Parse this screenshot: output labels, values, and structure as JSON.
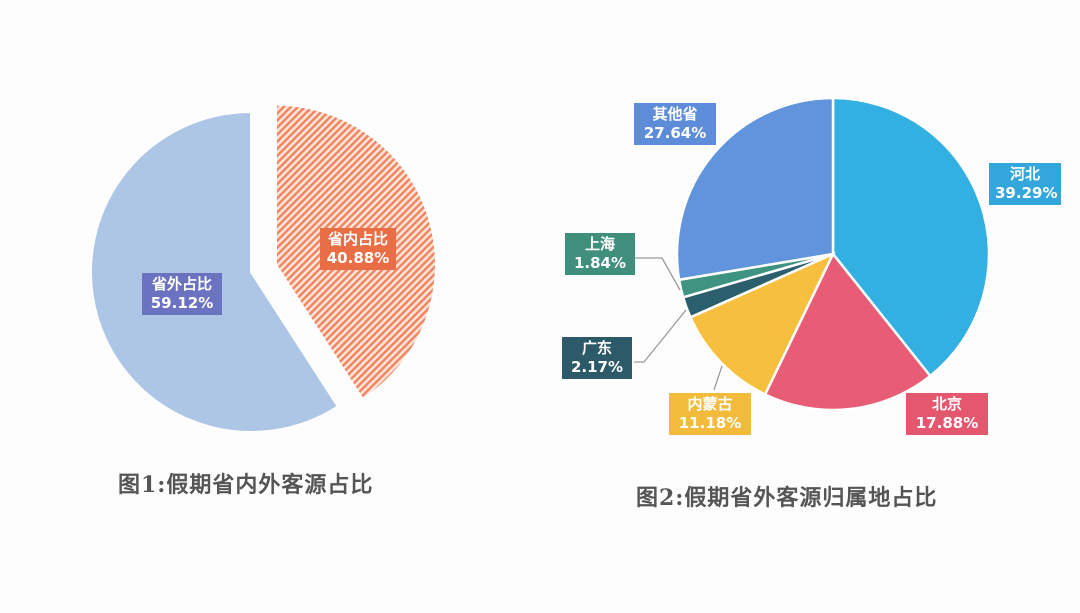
{
  "chart_data": [
    {
      "type": "pie",
      "title": "图1:假期省内外客源占比",
      "categories": [
        "省内占比",
        "省外占比"
      ],
      "values": [
        40.88,
        59.12
      ],
      "value_labels": [
        "40.88%",
        "59.12%"
      ],
      "colors": [
        "#ee7d58",
        "#adc6e6"
      ],
      "label_colors": [
        "#ea6e45",
        "#6b73c0"
      ],
      "start_angle_deg": 0,
      "direction": "clockwise",
      "exploded": [
        "省内占比"
      ],
      "pattern": {
        "省内占比": "diagonal-hatch"
      },
      "legend": "none"
    },
    {
      "type": "pie",
      "title": "图2:假期省外客源归属地占比",
      "categories": [
        "河北",
        "北京",
        "内蒙古",
        "广东",
        "上海",
        "其他省"
      ],
      "values": [
        39.29,
        17.88,
        11.18,
        2.17,
        1.84,
        27.64
      ],
      "value_labels": [
        "39.29%",
        "17.88%",
        "11.18%",
        "2.17%",
        "1.84%",
        "27.64%"
      ],
      "colors": [
        "#33b0e2",
        "#e85d75",
        "#f6bf3d",
        "#2c5f6d",
        "#3f9481",
        "#6194dc"
      ],
      "label_colors": [
        "#33a6dc",
        "#e5566f",
        "#f3bb3b",
        "#2c5a68",
        "#3f8f7c",
        "#5d8cd8"
      ],
      "start_angle_deg": 0,
      "direction": "clockwise",
      "legend": "none"
    }
  ],
  "figure1": {
    "caption": "图1:假期省内外客源占比",
    "labels": [
      {
        "name": "省内占比",
        "value": "40.88%"
      },
      {
        "name": "省外占比",
        "value": "59.12%"
      }
    ]
  },
  "figure2": {
    "caption": "图2:假期省外客源归属地占比",
    "labels": [
      {
        "name": "河北",
        "value": "39.29%"
      },
      {
        "name": "北京",
        "value": "17.88%"
      },
      {
        "name": "内蒙古",
        "value": "11.18%"
      },
      {
        "name": "广东",
        "value": "2.17%"
      },
      {
        "name": "上海",
        "value": "1.84%"
      },
      {
        "name": "其他省",
        "value": "27.64%"
      }
    ]
  }
}
